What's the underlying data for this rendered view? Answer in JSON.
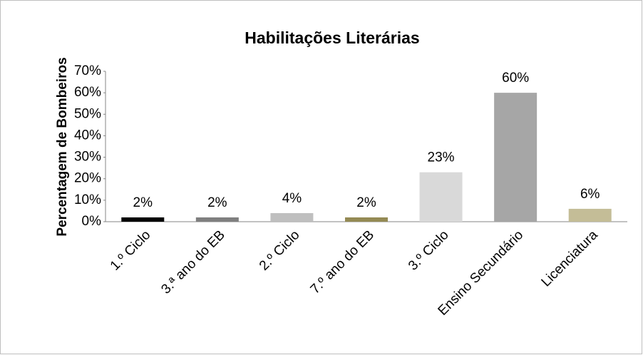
{
  "chart_data": {
    "type": "bar",
    "title": "Habilitações Literárias",
    "y_label": "Percentagem de Bombeiros",
    "categories": [
      "1.º Ciclo",
      "3.ª ano do EB",
      "2.º Ciclo",
      "7.º ano do EB",
      "3.º Ciclo",
      "Ensino Secundário",
      "Licenciatura"
    ],
    "values": [
      2,
      2,
      4,
      2,
      23,
      60,
      6
    ],
    "value_labels": [
      "2%",
      "2%",
      "4%",
      "2%",
      "23%",
      "60%",
      "6%"
    ],
    "colors": [
      "#000000",
      "#7f7f7f",
      "#bfbfbf",
      "#948a54",
      "#d9d9d9",
      "#a6a6a6",
      "#c4bd97"
    ],
    "ylim": [
      0,
      70
    ],
    "yticks": [
      {
        "value": 0,
        "label": "0%"
      },
      {
        "value": 10,
        "label": "10%"
      },
      {
        "value": 20,
        "label": "20%"
      },
      {
        "value": 30,
        "label": "30%"
      },
      {
        "value": 40,
        "label": "40%"
      },
      {
        "value": 50,
        "label": "50%"
      },
      {
        "value": 60,
        "label": "60%"
      },
      {
        "value": 70,
        "label": "70%"
      }
    ],
    "grid": false
  }
}
